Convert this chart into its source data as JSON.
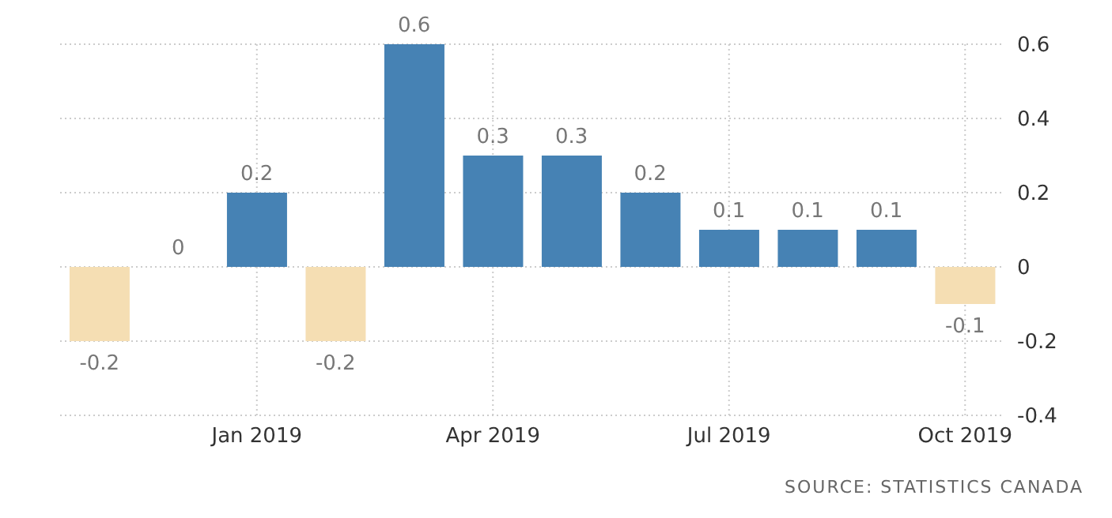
{
  "chart_data": {
    "type": "bar",
    "categories": [
      null,
      null,
      "Jan 2019",
      null,
      null,
      "Apr 2019",
      null,
      null,
      "Jul 2019",
      null,
      null,
      "Oct 2019"
    ],
    "values": [
      -0.2,
      0,
      0.2,
      -0.2,
      0.6,
      0.3,
      0.3,
      0.2,
      0.1,
      0.1,
      0.1,
      -0.1
    ],
    "colors": [
      "#f5deb3",
      "#4682b4",
      "#4682b4",
      "#f5deb3",
      "#4682b4",
      "#4682b4",
      "#4682b4",
      "#4682b4",
      "#4682b4",
      "#4682b4",
      "#4682b4",
      "#f5deb3"
    ],
    "ylim": [
      -0.4,
      0.6
    ],
    "yticks": [
      -0.4,
      -0.2,
      0,
      0.2,
      0.4,
      0.6
    ],
    "grid": true,
    "legend": false,
    "data_labels": true,
    "annotations": [
      "SOURCE: STATISTICS CANADA"
    ]
  }
}
